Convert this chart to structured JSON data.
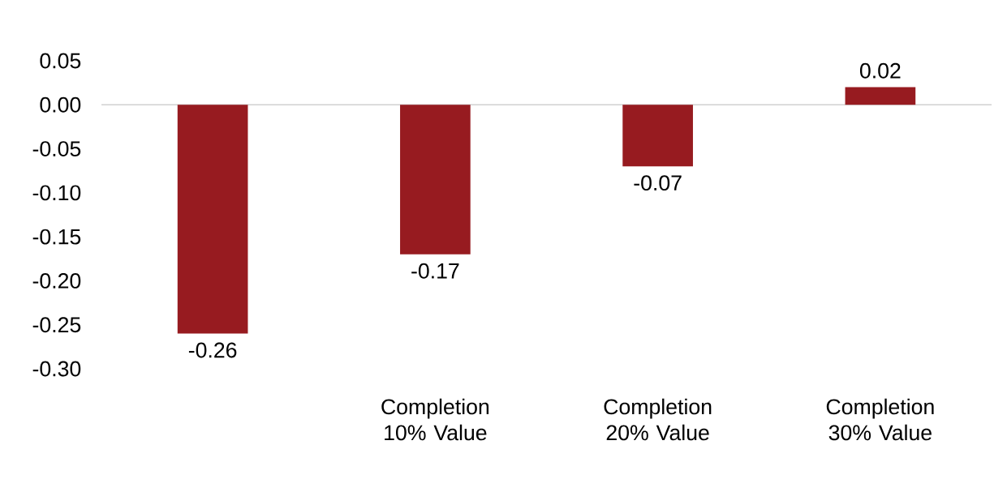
{
  "chart_data": {
    "type": "bar",
    "categories": [
      null,
      "Completion 10% Value",
      "Completion 20% Value",
      "Completion 30% Value"
    ],
    "values": [
      -0.26,
      -0.17,
      -0.07,
      0.02
    ],
    "color": "#971b20",
    "data_labels": true,
    "ylim": [
      -0.3,
      0.05
    ],
    "yticks": [
      0.05,
      {
        "value": 0,
        "label": "0.00"
      },
      -0.05,
      {
        "value": -0.1,
        "label": "-0.10"
      },
      -0.15,
      {
        "value": -0.2,
        "label": "-0.20"
      },
      -0.25,
      {
        "value": -0.3,
        "label": "-0.30"
      }
    ]
  }
}
